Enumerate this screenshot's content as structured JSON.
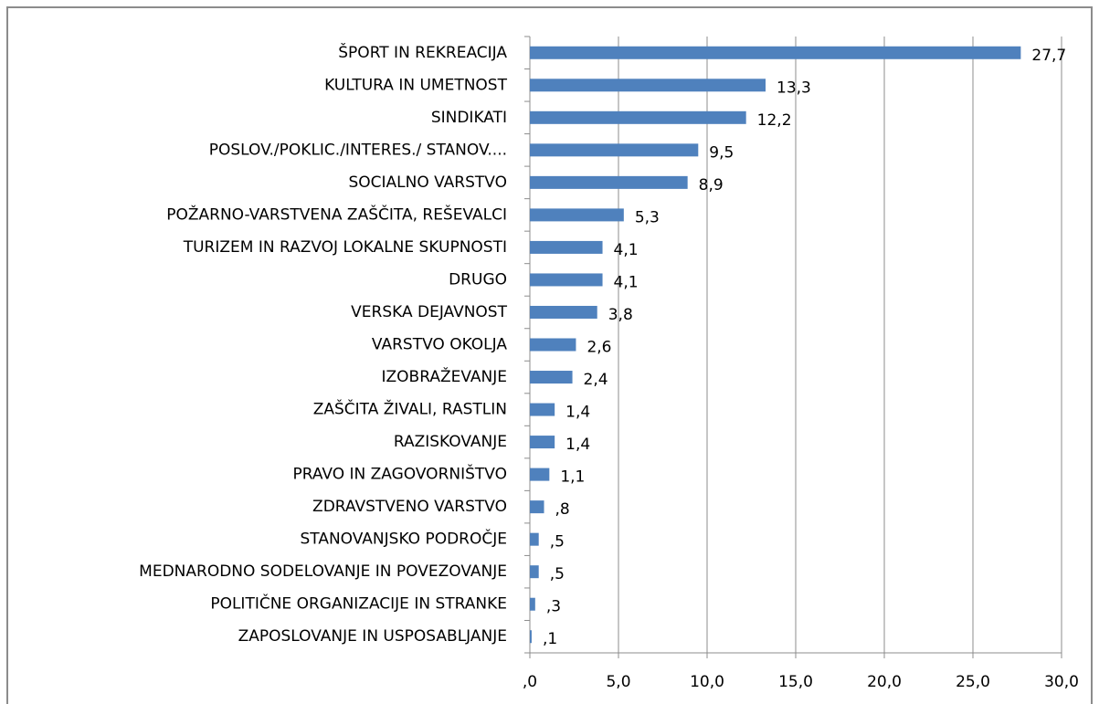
{
  "chart_data": {
    "type": "barh",
    "categories": [
      "ŠPORT IN REKREACIJA",
      "KULTURA IN UMETNOST",
      "SINDIKATI",
      "POSLOV./POKLIC./INTERES./ STANOV....",
      "SOCIALNO VARSTVO",
      "POŽARNO-VARSTVENA ZAŠČITA, REŠEVALCI",
      "TURIZEM IN RAZVOJ LOKALNE SKUPNOSTI",
      "DRUGO",
      "VERSKA DEJAVNOST",
      "VARSTVO OKOLJA",
      "IZOBRAŽEVANJE",
      "ZAŠČITA ŽIVALI, RASTLIN",
      "RAZISKOVANJE",
      "PRAVO IN ZAGOVORNIŠTVO",
      "ZDRAVSTVENO VARSTVO",
      "STANOVANJSKO PODROČJE",
      "MEDNARODNO SODELOVANJE IN POVEZOVANJE",
      "POLITIČNE ORGANIZACIJE IN STRANKE",
      "ZAPOSLOVANJE IN USPOSABLJANJE"
    ],
    "values": [
      27.7,
      13.3,
      12.2,
      9.5,
      8.9,
      5.3,
      4.1,
      4.1,
      3.8,
      2.6,
      2.4,
      1.4,
      1.4,
      1.1,
      0.8,
      0.5,
      0.5,
      0.3,
      0.1
    ],
    "value_labels": [
      "27,7",
      "13,3",
      "12,2",
      "9,5",
      "8,9",
      "5,3",
      "4,1",
      "4,1",
      "3,8",
      "2,6",
      "2,4",
      "1,4",
      "1,4",
      "1,1",
      ",8",
      ",5",
      ",5",
      ",3",
      ",1"
    ],
    "color": "#4f81bd",
    "xlim": [
      0,
      30
    ],
    "xticks": [
      {
        "value": 0,
        "label": ",0"
      },
      {
        "value": 5,
        "label": "5,0"
      },
      {
        "value": 10,
        "label": "10,0"
      },
      {
        "value": 15,
        "label": "15,0"
      },
      {
        "value": 20,
        "label": "20,0"
      },
      {
        "value": 25,
        "label": "25,0"
      },
      {
        "value": 30,
        "label": "30,0"
      }
    ],
    "grid": true
  }
}
